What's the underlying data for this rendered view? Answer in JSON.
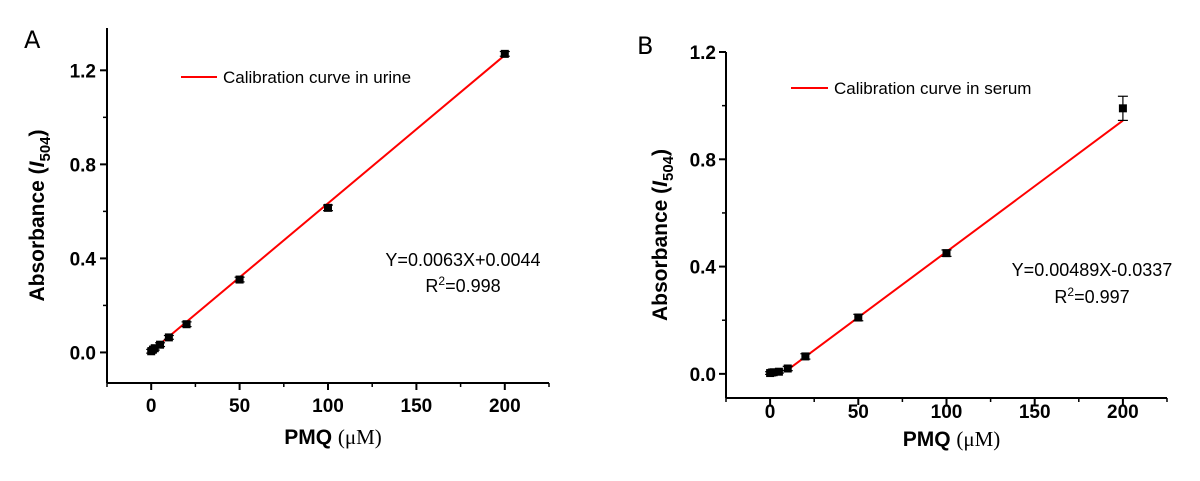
{
  "chart_data": [
    {
      "type": "scatter",
      "panel_label": "A",
      "xlabel_bold": "PMQ",
      "xlabel_unit": "(μM)",
      "ylabel_main": "Absorbance (",
      "ylabel_var": "I",
      "ylabel_sub": "504",
      "ylabel_close": ")",
      "xlim": [
        -25,
        225
      ],
      "ylim": [
        -0.13,
        1.38
      ],
      "xticks": [
        0,
        50,
        100,
        150,
        200
      ],
      "yticks": [
        0.0,
        0.4,
        0.8,
        1.2
      ],
      "ytick_labels": [
        "0.0",
        "0.4",
        "0.8",
        "1.2"
      ],
      "legend": {
        "text": "Calibration curve in urine",
        "color": "#ff0000",
        "placement": "top-center"
      },
      "equation": "Y=0.0063X+0.0044",
      "r2_prefix": "R",
      "r2_sup": "2",
      "r2_value": "=0.998",
      "fit": {
        "slope": 0.0063,
        "intercept": 0.0044,
        "x_range": [
          0,
          200
        ]
      },
      "points": [
        {
          "x": 0,
          "y": 0.005,
          "err": 0.008
        },
        {
          "x": 1,
          "y": 0.012,
          "err": 0.008
        },
        {
          "x": 2,
          "y": 0.018,
          "err": 0.008
        },
        {
          "x": 5,
          "y": 0.033,
          "err": 0.008
        },
        {
          "x": 10,
          "y": 0.064,
          "err": 0.008
        },
        {
          "x": 20,
          "y": 0.12,
          "err": 0.01
        },
        {
          "x": 50,
          "y": 0.31,
          "err": 0.01
        },
        {
          "x": 100,
          "y": 0.615,
          "err": 0.012
        },
        {
          "x": 200,
          "y": 1.27,
          "err": 0.01
        }
      ],
      "marker_color": "#000000"
    },
    {
      "type": "scatter",
      "panel_label": "B",
      "xlabel_bold": "PMQ",
      "xlabel_unit": "(μM)",
      "ylabel_main": "Absorbance (",
      "ylabel_var": "I",
      "ylabel_sub": "504",
      "ylabel_close": ")",
      "xlim": [
        -25,
        225
      ],
      "ylim": [
        -0.09,
        1.2
      ],
      "xticks": [
        0,
        50,
        100,
        150,
        200
      ],
      "yticks": [
        0.0,
        0.4,
        0.8,
        1.2
      ],
      "ytick_labels": [
        "0.0",
        "0.4",
        "0.8",
        "1.2"
      ],
      "legend": {
        "text": "Calibration curve in serum",
        "color": "#ff0000",
        "placement": "top-center"
      },
      "equation": "Y=0.00489X-0.0337",
      "r2_prefix": "R",
      "r2_sup": "2",
      "r2_value": "=0.997",
      "fit": {
        "slope": 0.00489,
        "intercept": -0.0337,
        "x_range": [
          10,
          200
        ]
      },
      "points": [
        {
          "x": 0,
          "y": 0.003,
          "err": 0.005
        },
        {
          "x": 1,
          "y": 0.005,
          "err": 0.005
        },
        {
          "x": 2,
          "y": 0.006,
          "err": 0.005
        },
        {
          "x": 5,
          "y": 0.008,
          "err": 0.005
        },
        {
          "x": 10,
          "y": 0.02,
          "err": 0.008
        },
        {
          "x": 20,
          "y": 0.065,
          "err": 0.01
        },
        {
          "x": 50,
          "y": 0.21,
          "err": 0.012
        },
        {
          "x": 100,
          "y": 0.45,
          "err": 0.012
        },
        {
          "x": 200,
          "y": 0.99,
          "err": 0.045
        }
      ],
      "marker_color": "#000000"
    }
  ]
}
